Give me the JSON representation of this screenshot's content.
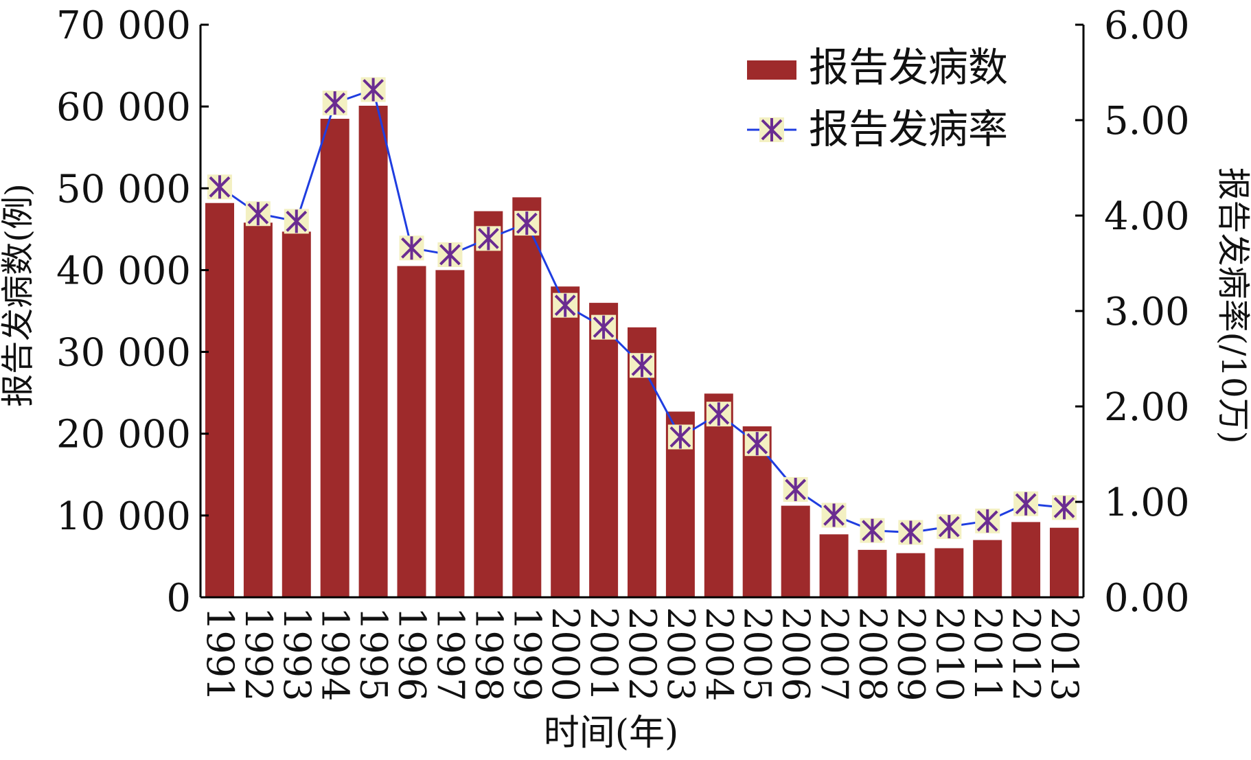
{
  "chart_data": {
    "type": "bar+line",
    "title": "",
    "xlabel": "时间(年)",
    "ylabel_left": "报告发病数(例)",
    "ylabel_right": "报告发病率(/10万)",
    "categories": [
      "1991",
      "1992",
      "1993",
      "1994",
      "1995",
      "1996",
      "1997",
      "1998",
      "1999",
      "2000",
      "2001",
      "2002",
      "2003",
      "2004",
      "2005",
      "2006",
      "2007",
      "2008",
      "2009",
      "2010",
      "2011",
      "2012",
      "2013"
    ],
    "left_axis": {
      "ylim": [
        0,
        70000
      ],
      "tick_values": [
        0,
        10000,
        20000,
        30000,
        40000,
        50000,
        60000,
        70000
      ],
      "tick_labels": [
        "0",
        "10 000",
        "20 000",
        "30 000",
        "40 000",
        "50 000",
        "60 000",
        "70 000"
      ]
    },
    "right_axis": {
      "ylim": [
        0,
        6
      ],
      "tick_values": [
        0,
        1,
        2,
        3,
        4,
        5,
        6
      ],
      "tick_labels": [
        "0.00",
        "1.00",
        "2.00",
        "3.00",
        "4.00",
        "5.00",
        "6.00"
      ]
    },
    "series": [
      {
        "name": "报告发病数",
        "type": "bar",
        "axis": "left",
        "color": "#9e2a2b",
        "values": [
          48200,
          45800,
          44700,
          58500,
          60100,
          40500,
          40000,
          47200,
          48900,
          38000,
          36000,
          33000,
          22700,
          24900,
          20900,
          11200,
          7700,
          5800,
          5400,
          6000,
          7000,
          9200,
          8500
        ]
      },
      {
        "name": "报告发病率",
        "type": "line",
        "axis": "right",
        "color": "#1f3de0",
        "marker_color": "#6a2c91",
        "marker_bg": "#f3f0c2",
        "values": [
          4.3,
          4.02,
          3.94,
          5.18,
          5.32,
          3.66,
          3.59,
          3.76,
          3.92,
          3.06,
          2.83,
          2.43,
          1.68,
          1.92,
          1.61,
          1.13,
          0.86,
          0.7,
          0.68,
          0.74,
          0.8,
          0.98,
          0.94
        ]
      }
    ],
    "legend": {
      "position": "top-right",
      "entries": [
        "报告发病数",
        "报告发病率"
      ]
    },
    "grid": false
  }
}
